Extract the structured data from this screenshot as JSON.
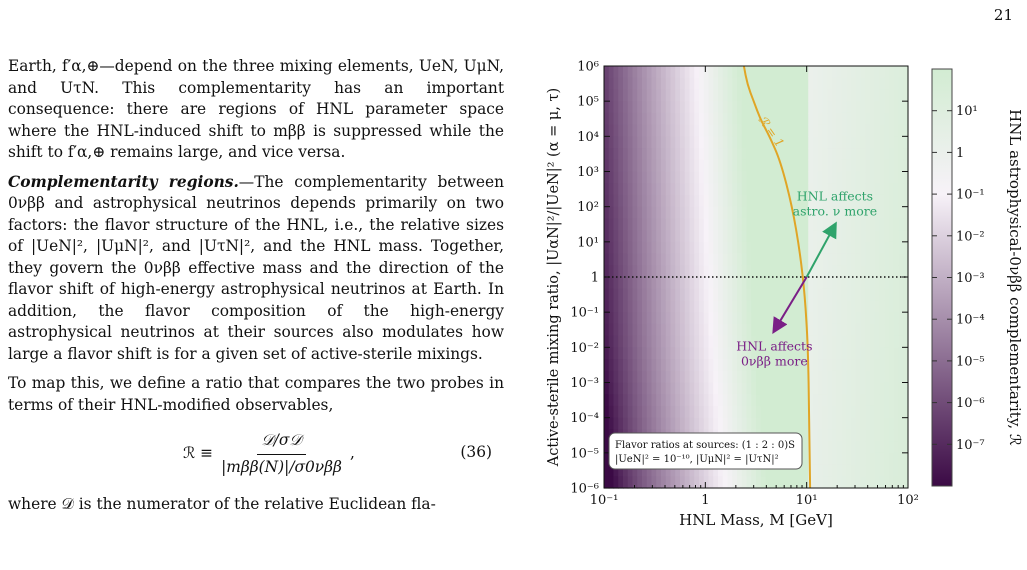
{
  "page_number": "21",
  "text": {
    "intro": "Earth, f′α,⊕—depend on the three mixing elements, UeN, UμN, and UτN. This complementarity has an important consequence: there are regions of HNL parameter space where the HNL-induced shift to mββ is suppressed while the shift to f′α,⊕ remains large, and vice versa.",
    "para2_heading": "Complementarity regions.",
    "para2_body": "—The complementarity between 0νββ and astrophysical neutrinos depends primarily on two factors: the flavor structure of the HNL, i.e., the relative sizes of |UeN|², |UμN|², and |UτN|², and the HNL mass. Together, they govern the 0νββ effective mass and the direction of the flavor shift of high-energy astrophysical neutrinos at Earth. In addition, the flavor composition of the high-energy astrophysical neutrinos at their sources also modulates how large a flavor shift is for a given set of active-sterile mixings.",
    "para3": "To map this, we define a ratio that compares the two probes in terms of their HNL-modified observables,",
    "eq_lhs": "ℛ ≡",
    "eq_numerator": "𝒟/σ𝒟",
    "eq_denominator": "|mββ(N)|/σ0νββ",
    "eq_comma": ",",
    "eq_number": "(36)",
    "trailing": "where 𝒟 is the numerator of the relative Euclidean fla-"
  },
  "chart_data": {
    "type": "heatmap",
    "xlabel": "HNL Mass, M [GeV]",
    "ylabel": "Active-sterile mixing ratio, |UαN|²/|UeN|² (α = μ, τ)",
    "xscale": "log",
    "yscale": "log",
    "xlim": [
      0.1,
      100
    ],
    "ylim": [
      1e-06,
      1000000.0
    ],
    "x_ticks": [
      {
        "value": 0.1,
        "label": "10⁻¹"
      },
      {
        "value": 1,
        "label": "1"
      },
      {
        "value": 10,
        "label": "10¹"
      },
      {
        "value": 100,
        "label": "10²"
      }
    ],
    "y_ticks": [
      {
        "value": 1e-06,
        "label": "10⁻⁶"
      },
      {
        "value": 1e-05,
        "label": "10⁻⁵"
      },
      {
        "value": 0.0001,
        "label": "10⁻⁴"
      },
      {
        "value": 0.001,
        "label": "10⁻³"
      },
      {
        "value": 0.01,
        "label": "10⁻²"
      },
      {
        "value": 0.1,
        "label": "10⁻¹"
      },
      {
        "value": 1,
        "label": "1"
      },
      {
        "value": 10,
        "label": "10¹"
      },
      {
        "value": 100,
        "label": "10²"
      },
      {
        "value": 1000,
        "label": "10³"
      },
      {
        "value": 10000,
        "label": "10⁴"
      },
      {
        "value": 100000,
        "label": "10⁵"
      },
      {
        "value": 1000000,
        "label": "10⁶"
      }
    ],
    "colorbar": {
      "label": "HNL astrophysical-0νββ complementarity, ℛ",
      "scale": "log",
      "range": [
        1e-08,
        100.0
      ],
      "colors": {
        "low": "#3b0a45",
        "mid": "#f7f2f8",
        "high": "#d2ecd2"
      },
      "ticks": [
        {
          "value": 10,
          "label": "10¹"
        },
        {
          "value": 1,
          "label": "1"
        },
        {
          "value": 0.1,
          "label": "10⁻¹"
        },
        {
          "value": 0.01,
          "label": "10⁻²"
        },
        {
          "value": 0.001,
          "label": "10⁻³"
        },
        {
          "value": 0.0001,
          "label": "10⁻⁴"
        },
        {
          "value": 1e-05,
          "label": "10⁻⁵"
        },
        {
          "value": 1e-06,
          "label": "10⁻⁶"
        },
        {
          "value": 1e-07,
          "label": "10⁻⁷"
        }
      ]
    },
    "contour": {
      "label": "ℛ = 1",
      "color": "#e0a526",
      "points": [
        [
          2.4,
          1000000.0
        ],
        [
          2.6,
          300000.0
        ],
        [
          3.0,
          100000.0
        ],
        [
          3.5,
          30000.0
        ],
        [
          4.3,
          10000.0
        ],
        [
          5.5,
          2000.0
        ],
        [
          7.2,
          100
        ],
        [
          8.6,
          5
        ],
        [
          9.6,
          0.3
        ],
        [
          10.3,
          0.01
        ],
        [
          10.6,
          0.0001
        ],
        [
          10.8,
          1e-06
        ]
      ]
    },
    "reference_line": {
      "y": 1,
      "style": "dotted",
      "color": "#111111"
    },
    "annotations": [
      {
        "text_lines": [
          "HNL affects",
          "astro. ν more"
        ],
        "color": "#2fa36b",
        "arrow_from": [
          10,
          1
        ],
        "arrow_to": [
          19,
          30
        ],
        "text_at": [
          19,
          150
        ]
      },
      {
        "text_lines": [
          "HNL affects",
          "0νββ more"
        ],
        "color": "#7a1f86",
        "arrow_from": [
          10,
          1
        ],
        "arrow_to": [
          4.8,
          0.03
        ],
        "text_at": [
          4.8,
          0.008
        ]
      }
    ],
    "legend_box": {
      "line1": "Flavor ratios at sources: (1 : 2 : 0)S",
      "line2": "|UeN|² = 10⁻¹⁰, |UμN|² = |UτN|²",
      "placement": "bottom-left"
    }
  }
}
